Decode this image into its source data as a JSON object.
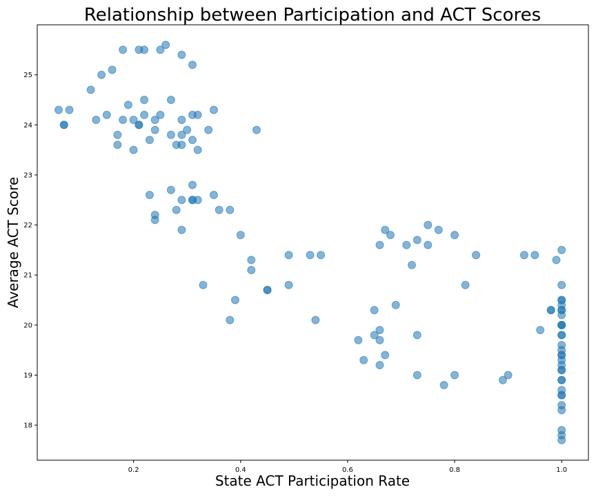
{
  "chart_data": {
    "type": "scatter",
    "title": "Relationship between Participation and ACT Scores",
    "xlabel": "State ACT Participation Rate",
    "ylabel": "Average ACT Score",
    "xlim": [
      0.02,
      1.05
    ],
    "ylim": [
      17.3,
      26.0
    ],
    "xticks": [
      0.2,
      0.4,
      0.6,
      0.8,
      1.0
    ],
    "xtick_labels": [
      "0.2",
      "0.4",
      "0.6",
      "0.8",
      "1.0"
    ],
    "yticks": [
      18,
      19,
      20,
      21,
      22,
      23,
      24,
      25
    ],
    "ytick_labels": [
      "18",
      "19",
      "20",
      "21",
      "22",
      "23",
      "24",
      "25"
    ],
    "grid": false,
    "marker_color": "#1f77b4",
    "marker_alpha": 0.55,
    "points": [
      {
        "x": 0.06,
        "y": 24.3
      },
      {
        "x": 0.08,
        "y": 24.3
      },
      {
        "x": 0.07,
        "y": 24.0
      },
      {
        "x": 0.07,
        "y": 24.0
      },
      {
        "x": 0.12,
        "y": 24.7
      },
      {
        "x": 0.14,
        "y": 25.0
      },
      {
        "x": 0.16,
        "y": 25.1
      },
      {
        "x": 0.13,
        "y": 24.1
      },
      {
        "x": 0.15,
        "y": 24.2
      },
      {
        "x": 0.17,
        "y": 23.8
      },
      {
        "x": 0.17,
        "y": 23.6
      },
      {
        "x": 0.18,
        "y": 24.1
      },
      {
        "x": 0.18,
        "y": 25.5
      },
      {
        "x": 0.19,
        "y": 24.4
      },
      {
        "x": 0.2,
        "y": 24.1
      },
      {
        "x": 0.2,
        "y": 23.5
      },
      {
        "x": 0.21,
        "y": 25.5
      },
      {
        "x": 0.21,
        "y": 24.0
      },
      {
        "x": 0.21,
        "y": 24.0
      },
      {
        "x": 0.22,
        "y": 25.5
      },
      {
        "x": 0.22,
        "y": 24.5
      },
      {
        "x": 0.22,
        "y": 24.2
      },
      {
        "x": 0.23,
        "y": 23.7
      },
      {
        "x": 0.24,
        "y": 24.1
      },
      {
        "x": 0.24,
        "y": 23.9
      },
      {
        "x": 0.25,
        "y": 25.5
      },
      {
        "x": 0.25,
        "y": 24.2
      },
      {
        "x": 0.26,
        "y": 25.6
      },
      {
        "x": 0.27,
        "y": 24.5
      },
      {
        "x": 0.27,
        "y": 23.8
      },
      {
        "x": 0.28,
        "y": 23.6
      },
      {
        "x": 0.29,
        "y": 25.4
      },
      {
        "x": 0.29,
        "y": 24.1
      },
      {
        "x": 0.29,
        "y": 23.8
      },
      {
        "x": 0.29,
        "y": 23.6
      },
      {
        "x": 0.3,
        "y": 23.9
      },
      {
        "x": 0.31,
        "y": 25.2
      },
      {
        "x": 0.31,
        "y": 24.2
      },
      {
        "x": 0.31,
        "y": 23.7
      },
      {
        "x": 0.32,
        "y": 24.2
      },
      {
        "x": 0.32,
        "y": 23.5
      },
      {
        "x": 0.34,
        "y": 23.9
      },
      {
        "x": 0.35,
        "y": 24.3
      },
      {
        "x": 0.43,
        "y": 23.9
      },
      {
        "x": 0.23,
        "y": 22.6
      },
      {
        "x": 0.24,
        "y": 22.2
      },
      {
        "x": 0.24,
        "y": 22.1
      },
      {
        "x": 0.27,
        "y": 22.7
      },
      {
        "x": 0.28,
        "y": 22.3
      },
      {
        "x": 0.29,
        "y": 22.5
      },
      {
        "x": 0.29,
        "y": 21.9
      },
      {
        "x": 0.31,
        "y": 22.8
      },
      {
        "x": 0.31,
        "y": 22.5
      },
      {
        "x": 0.31,
        "y": 22.5
      },
      {
        "x": 0.32,
        "y": 22.5
      },
      {
        "x": 0.35,
        "y": 22.6
      },
      {
        "x": 0.36,
        "y": 22.3
      },
      {
        "x": 0.38,
        "y": 22.3
      },
      {
        "x": 0.4,
        "y": 21.8
      },
      {
        "x": 0.42,
        "y": 21.3
      },
      {
        "x": 0.42,
        "y": 21.1
      },
      {
        "x": 0.33,
        "y": 20.8
      },
      {
        "x": 0.39,
        "y": 20.5
      },
      {
        "x": 0.38,
        "y": 20.1
      },
      {
        "x": 0.45,
        "y": 20.7
      },
      {
        "x": 0.45,
        "y": 20.7
      },
      {
        "x": 0.49,
        "y": 21.4
      },
      {
        "x": 0.49,
        "y": 20.8
      },
      {
        "x": 0.53,
        "y": 21.4
      },
      {
        "x": 0.55,
        "y": 21.4
      },
      {
        "x": 0.54,
        "y": 20.1
      },
      {
        "x": 0.62,
        "y": 19.7
      },
      {
        "x": 0.63,
        "y": 19.3
      },
      {
        "x": 0.65,
        "y": 20.3
      },
      {
        "x": 0.65,
        "y": 19.8
      },
      {
        "x": 0.66,
        "y": 21.6
      },
      {
        "x": 0.66,
        "y": 19.9
      },
      {
        "x": 0.66,
        "y": 19.7
      },
      {
        "x": 0.66,
        "y": 19.2
      },
      {
        "x": 0.67,
        "y": 21.9
      },
      {
        "x": 0.67,
        "y": 19.4
      },
      {
        "x": 0.68,
        "y": 21.8
      },
      {
        "x": 0.69,
        "y": 20.4
      },
      {
        "x": 0.71,
        "y": 21.6
      },
      {
        "x": 0.72,
        "y": 21.2
      },
      {
        "x": 0.73,
        "y": 21.7
      },
      {
        "x": 0.73,
        "y": 19.8
      },
      {
        "x": 0.73,
        "y": 19.0
      },
      {
        "x": 0.75,
        "y": 22.0
      },
      {
        "x": 0.75,
        "y": 21.6
      },
      {
        "x": 0.77,
        "y": 21.9
      },
      {
        "x": 0.78,
        "y": 18.8
      },
      {
        "x": 0.8,
        "y": 21.8
      },
      {
        "x": 0.8,
        "y": 19.0
      },
      {
        "x": 0.82,
        "y": 20.8
      },
      {
        "x": 0.84,
        "y": 21.4
      },
      {
        "x": 0.89,
        "y": 18.9
      },
      {
        "x": 0.9,
        "y": 19.0
      },
      {
        "x": 0.93,
        "y": 21.4
      },
      {
        "x": 0.95,
        "y": 21.4
      },
      {
        "x": 0.96,
        "y": 19.9
      },
      {
        "x": 0.98,
        "y": 20.3
      },
      {
        "x": 0.98,
        "y": 20.3
      },
      {
        "x": 0.99,
        "y": 21.3
      },
      {
        "x": 1.0,
        "y": 21.5
      },
      {
        "x": 1.0,
        "y": 20.8
      },
      {
        "x": 1.0,
        "y": 20.5
      },
      {
        "x": 1.0,
        "y": 20.5
      },
      {
        "x": 1.0,
        "y": 20.4
      },
      {
        "x": 1.0,
        "y": 20.3
      },
      {
        "x": 1.0,
        "y": 20.3
      },
      {
        "x": 1.0,
        "y": 20.2
      },
      {
        "x": 1.0,
        "y": 20.0
      },
      {
        "x": 1.0,
        "y": 20.0
      },
      {
        "x": 1.0,
        "y": 20.0
      },
      {
        "x": 1.0,
        "y": 19.8
      },
      {
        "x": 1.0,
        "y": 19.8
      },
      {
        "x": 1.0,
        "y": 19.6
      },
      {
        "x": 1.0,
        "y": 19.5
      },
      {
        "x": 1.0,
        "y": 19.4
      },
      {
        "x": 1.0,
        "y": 19.4
      },
      {
        "x": 1.0,
        "y": 19.3
      },
      {
        "x": 1.0,
        "y": 19.2
      },
      {
        "x": 1.0,
        "y": 19.1
      },
      {
        "x": 1.0,
        "y": 19.1
      },
      {
        "x": 1.0,
        "y": 18.9
      },
      {
        "x": 1.0,
        "y": 18.9
      },
      {
        "x": 1.0,
        "y": 18.7
      },
      {
        "x": 1.0,
        "y": 18.6
      },
      {
        "x": 1.0,
        "y": 18.6
      },
      {
        "x": 1.0,
        "y": 18.4
      },
      {
        "x": 1.0,
        "y": 18.3
      },
      {
        "x": 1.0,
        "y": 17.9
      },
      {
        "x": 1.0,
        "y": 17.8
      },
      {
        "x": 1.0,
        "y": 17.7
      }
    ]
  }
}
